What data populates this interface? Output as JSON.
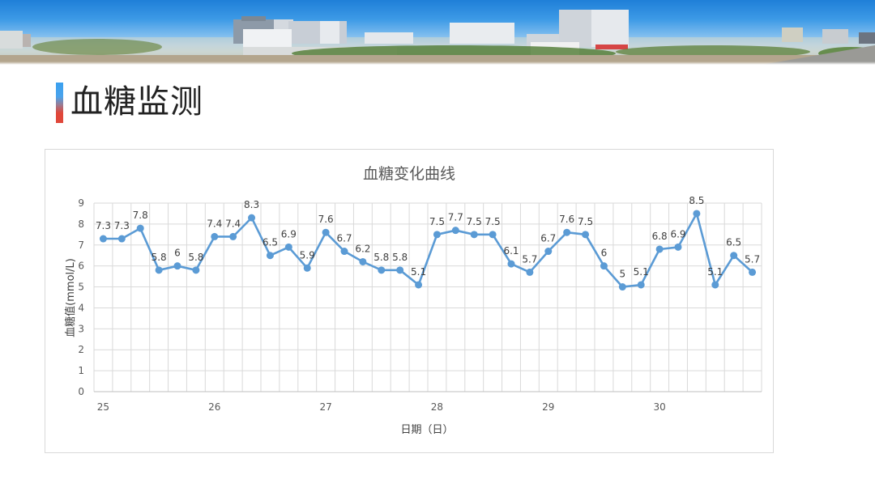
{
  "slide": {
    "title": "血糖监测",
    "accent_colors": {
      "top": "#3aa0ef",
      "bottom": "#e0473a"
    }
  },
  "banner": {
    "description": "hospital campus skyline photo",
    "sky_color": "#2a86dc"
  },
  "chart_data": {
    "type": "line",
    "title": "血糖变化曲线",
    "xlabel": "日期（日）",
    "ylabel": "血糖值(mmol/L)",
    "ylim": [
      0,
      9
    ],
    "yticks": [
      0,
      1,
      2,
      3,
      4,
      5,
      6,
      7,
      8,
      9
    ],
    "x_tick_labels": [
      "25",
      "26",
      "27",
      "28",
      "29",
      "30"
    ],
    "points_per_day": 6,
    "grid": true,
    "legend": "none",
    "line_color": "#5b9bd5",
    "series": [
      {
        "name": "血糖值",
        "values": [
          7.3,
          7.3,
          7.8,
          5.8,
          6,
          5.8,
          7.4,
          7.4,
          8.3,
          6.5,
          6.9,
          5.9,
          7.6,
          6.7,
          6.2,
          5.8,
          5.8,
          5.1,
          7.5,
          7.7,
          7.5,
          7.5,
          6.1,
          5.7,
          6.7,
          7.6,
          7.5,
          6,
          5,
          5.1,
          6.8,
          6.9,
          8.5,
          5.1,
          6.5,
          5.7
        ]
      }
    ]
  }
}
